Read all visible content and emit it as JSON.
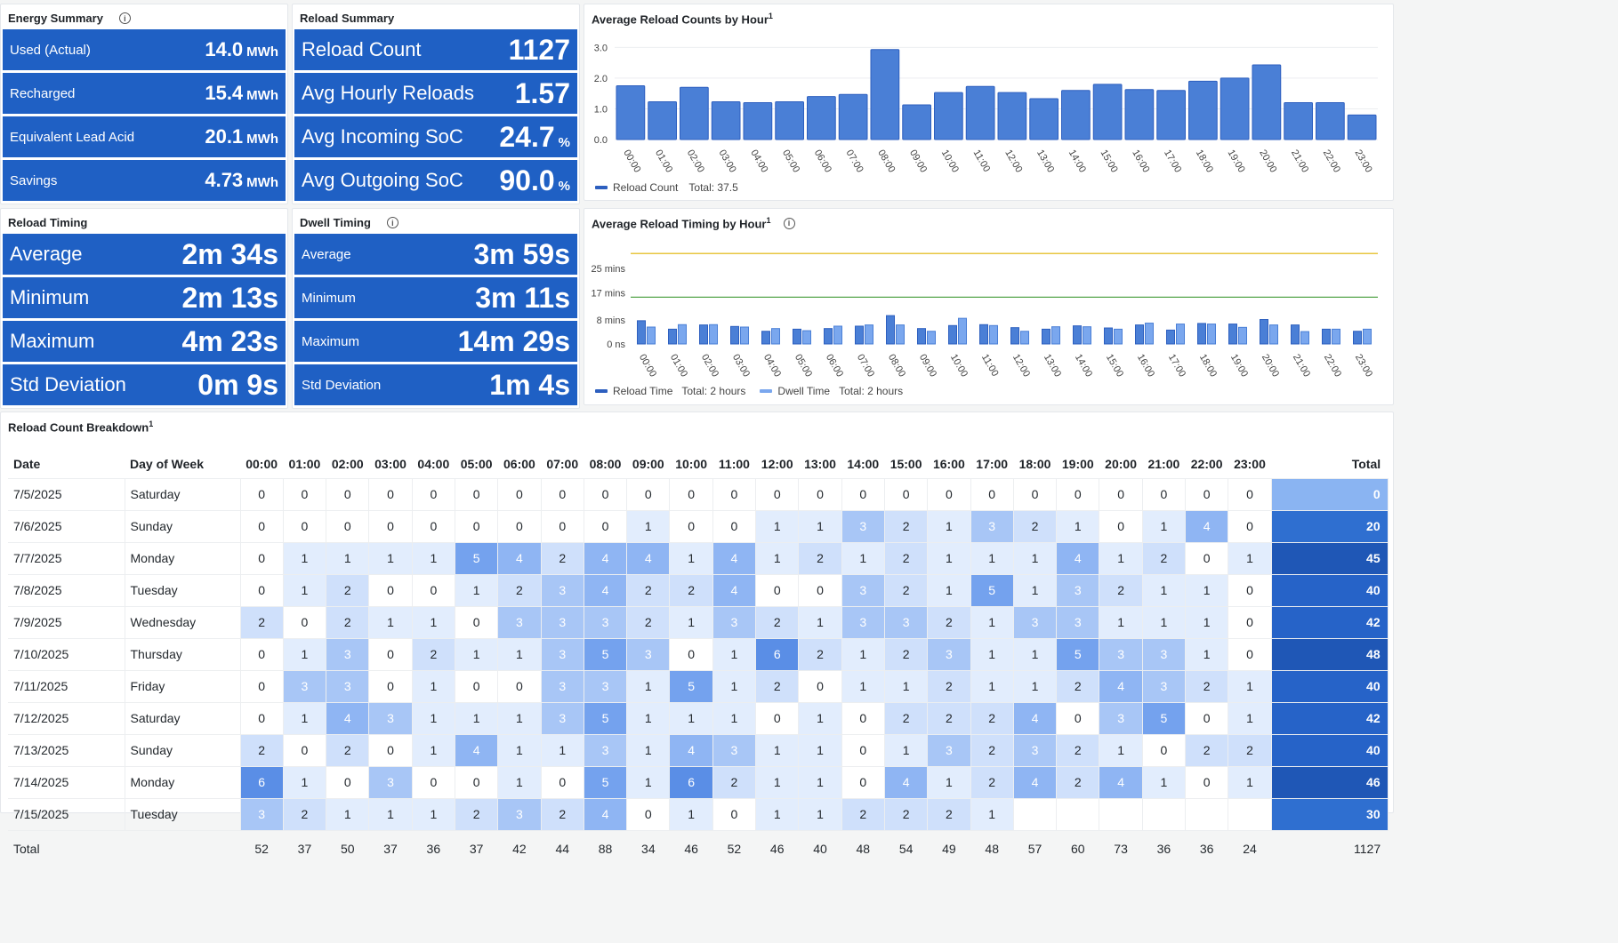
{
  "energy": {
    "title": "Energy Summary",
    "items": [
      {
        "label": "Used (Actual)",
        "value": "14.0",
        "unit": "MWh"
      },
      {
        "label": "Recharged",
        "value": "15.4",
        "unit": "MWh"
      },
      {
        "label": "Equivalent Lead Acid",
        "value": "20.1",
        "unit": "MWh"
      },
      {
        "label": "Savings",
        "value": "4.73",
        "unit": "MWh"
      }
    ]
  },
  "reload_summary": {
    "title": "Reload Summary",
    "items": [
      {
        "label": "Reload Count",
        "value": "1127",
        "unit": ""
      },
      {
        "label": "Avg Hourly Reloads",
        "value": "1.57",
        "unit": ""
      },
      {
        "label": "Avg Incoming SoC",
        "value": "24.7",
        "unit": "%"
      },
      {
        "label": "Avg Outgoing SoC",
        "value": "90.0",
        "unit": "%"
      }
    ]
  },
  "reload_timing": {
    "title": "Reload Timing",
    "items": [
      {
        "label": "Average",
        "value": "2m 34s"
      },
      {
        "label": "Minimum",
        "value": "2m 13s"
      },
      {
        "label": "Maximum",
        "value": "4m 23s"
      },
      {
        "label": "Std Deviation",
        "value": "0m 9s"
      }
    ]
  },
  "dwell_timing": {
    "title": "Dwell Timing",
    "items": [
      {
        "label": "Average",
        "value": "3m 59s"
      },
      {
        "label": "Minimum",
        "value": "3m 11s"
      },
      {
        "label": "Maximum",
        "value": "14m 29s"
      },
      {
        "label": "Std Deviation",
        "value": "1m 4s"
      }
    ]
  },
  "colors": {
    "stat_bg": "#1f60c4",
    "bar": "#4a7fd6",
    "bar_light": "#7aa7ee",
    "yellow_line": "#e0b400",
    "green_line": "#56a64b"
  },
  "chart_data": [
    {
      "type": "bar",
      "title": "Average Reload Counts by Hour",
      "title_sup": "1",
      "categories": [
        "00:00",
        "01:00",
        "02:00",
        "03:00",
        "04:00",
        "05:00",
        "06:00",
        "07:00",
        "08:00",
        "09:00",
        "10:00",
        "11:00",
        "12:00",
        "13:00",
        "14:00",
        "15:00",
        "16:00",
        "17:00",
        "18:00",
        "19:00",
        "20:00",
        "21:00",
        "22:00",
        "23:00"
      ],
      "series": [
        {
          "name": "Reload Count",
          "values": [
            1.75,
            1.23,
            1.7,
            1.23,
            1.2,
            1.23,
            1.4,
            1.47,
            2.93,
            1.13,
            1.53,
            1.73,
            1.53,
            1.33,
            1.6,
            1.8,
            1.63,
            1.6,
            1.9,
            2.0,
            2.43,
            1.2,
            1.2,
            0.8
          ]
        }
      ],
      "legend_total": "Total: 37.5",
      "yticks": [
        "3.0",
        "2.0",
        "1.0",
        "0.0"
      ],
      "ylim": [
        0,
        3.3
      ]
    },
    {
      "type": "bar",
      "title": "Average Reload Timing by Hour",
      "title_sup": "1",
      "categories": [
        "00:00",
        "01:00",
        "02:00",
        "03:00",
        "04:00",
        "05:00",
        "06:00",
        "07:00",
        "08:00",
        "09:00",
        "10:00",
        "11:00",
        "12:00",
        "13:00",
        "14:00",
        "15:00",
        "16:00",
        "17:00",
        "18:00",
        "19:00",
        "20:00",
        "21:00",
        "22:00",
        "23:00"
      ],
      "series": [
        {
          "name": "Reload Time",
          "values": [
            7.7,
            4.9,
            6.3,
            5.8,
            4.2,
            4.9,
            5.1,
            5.9,
            9.4,
            5.1,
            6.1,
            6.4,
            5.4,
            4.9,
            6.0,
            5.3,
            6.3,
            4.6,
            6.8,
            6.6,
            8.1,
            6.3,
            4.9,
            4.2
          ]
        },
        {
          "name": "Dwell Time",
          "values": [
            5.6,
            6.4,
            6.4,
            5.6,
            5.1,
            4.4,
            5.9,
            6.3,
            6.3,
            4.2,
            8.5,
            6.1,
            4.2,
            5.7,
            5.7,
            4.9,
            6.9,
            6.6,
            6.6,
            5.5,
            6.3,
            4.1,
            4.9,
            4.9
          ]
        }
      ],
      "legend_totals": [
        "Total: 2 hours",
        "Total: 2 hours"
      ],
      "yticks": [
        "25 mins",
        "17 mins",
        "8 mins",
        "0 ns"
      ],
      "thresholds": [
        {
          "color": "yellow",
          "value": 30
        },
        {
          "color": "green",
          "value": 15.5
        }
      ],
      "ylim": [
        0,
        33
      ]
    }
  ],
  "breakdown": {
    "title": "Reload Count Breakdown",
    "title_sup": "1",
    "headers": {
      "date": "Date",
      "dow": "Day of Week",
      "total": "Total"
    },
    "hours": [
      "00:00",
      "01:00",
      "02:00",
      "03:00",
      "04:00",
      "05:00",
      "06:00",
      "07:00",
      "08:00",
      "09:00",
      "10:00",
      "11:00",
      "12:00",
      "13:00",
      "14:00",
      "15:00",
      "16:00",
      "17:00",
      "18:00",
      "19:00",
      "20:00",
      "21:00",
      "22:00",
      "23:00"
    ],
    "rows": [
      {
        "date": "7/5/2025",
        "dow": "Saturday",
        "counts": [
          0,
          0,
          0,
          0,
          0,
          0,
          0,
          0,
          0,
          0,
          0,
          0,
          0,
          0,
          0,
          0,
          0,
          0,
          0,
          0,
          0,
          0,
          0,
          0
        ],
        "total": "0"
      },
      {
        "date": "7/6/2025",
        "dow": "Sunday",
        "counts": [
          0,
          0,
          0,
          0,
          0,
          0,
          0,
          0,
          0,
          1,
          0,
          0,
          1,
          1,
          3,
          2,
          1,
          3,
          2,
          1,
          0,
          1,
          4,
          0
        ],
        "total": "20"
      },
      {
        "date": "7/7/2025",
        "dow": "Monday",
        "counts": [
          0,
          1,
          1,
          1,
          1,
          5,
          4,
          2,
          4,
          4,
          1,
          4,
          1,
          2,
          1,
          2,
          1,
          1,
          1,
          4,
          1,
          2,
          0,
          1
        ],
        "total": "45"
      },
      {
        "date": "7/8/2025",
        "dow": "Tuesday",
        "counts": [
          0,
          1,
          2,
          0,
          0,
          1,
          2,
          3,
          4,
          2,
          2,
          4,
          0,
          0,
          3,
          2,
          1,
          5,
          1,
          3,
          2,
          1,
          1,
          0
        ],
        "total": "40"
      },
      {
        "date": "7/9/2025",
        "dow": "Wednesday",
        "counts": [
          2,
          0,
          2,
          1,
          1,
          0,
          3,
          3,
          3,
          2,
          1,
          3,
          2,
          1,
          3,
          3,
          2,
          1,
          3,
          3,
          1,
          1,
          1,
          0
        ],
        "total": "42"
      },
      {
        "date": "7/10/2025",
        "dow": "Thursday",
        "counts": [
          0,
          1,
          3,
          0,
          2,
          1,
          1,
          3,
          5,
          3,
          0,
          1,
          6,
          2,
          1,
          2,
          3,
          1,
          1,
          5,
          3,
          3,
          1,
          0
        ],
        "total": "48"
      },
      {
        "date": "7/11/2025",
        "dow": "Friday",
        "counts": [
          0,
          3,
          3,
          0,
          1,
          0,
          0,
          3,
          3,
          1,
          5,
          1,
          2,
          0,
          1,
          1,
          2,
          1,
          1,
          2,
          4,
          3,
          2,
          1
        ],
        "total": "40"
      },
      {
        "date": "7/12/2025",
        "dow": "Saturday",
        "counts": [
          0,
          1,
          4,
          3,
          1,
          1,
          1,
          3,
          5,
          1,
          1,
          1,
          0,
          1,
          0,
          2,
          2,
          2,
          4,
          0,
          3,
          5,
          0,
          1
        ],
        "total": "42"
      },
      {
        "date": "7/13/2025",
        "dow": "Sunday",
        "counts": [
          2,
          0,
          2,
          0,
          1,
          4,
          1,
          1,
          3,
          1,
          4,
          3,
          1,
          1,
          0,
          1,
          3,
          2,
          3,
          2,
          1,
          0,
          2,
          2
        ],
        "total": "40"
      },
      {
        "date": "7/14/2025",
        "dow": "Monday",
        "counts": [
          6,
          1,
          0,
          3,
          0,
          0,
          1,
          0,
          5,
          1,
          6,
          2,
          1,
          1,
          0,
          4,
          1,
          2,
          4,
          2,
          4,
          1,
          0,
          1
        ],
        "total": "46"
      },
      {
        "date": "7/15/2025",
        "dow": "Tuesday",
        "counts": [
          3,
          2,
          1,
          1,
          1,
          2,
          3,
          2,
          4,
          0,
          1,
          0,
          1,
          1,
          2,
          2,
          2,
          1,
          null,
          null,
          null,
          null,
          null,
          null
        ],
        "total": "30"
      }
    ],
    "totals_label": "Total",
    "totals": [
      "52",
      "37",
      "50",
      "37",
      "36",
      "37",
      "42",
      "44",
      "88",
      "34",
      "46",
      "52",
      "46",
      "40",
      "48",
      "54",
      "49",
      "48",
      "57",
      "60",
      "73",
      "36",
      "36",
      "24"
    ],
    "grand_total": "1127"
  }
}
